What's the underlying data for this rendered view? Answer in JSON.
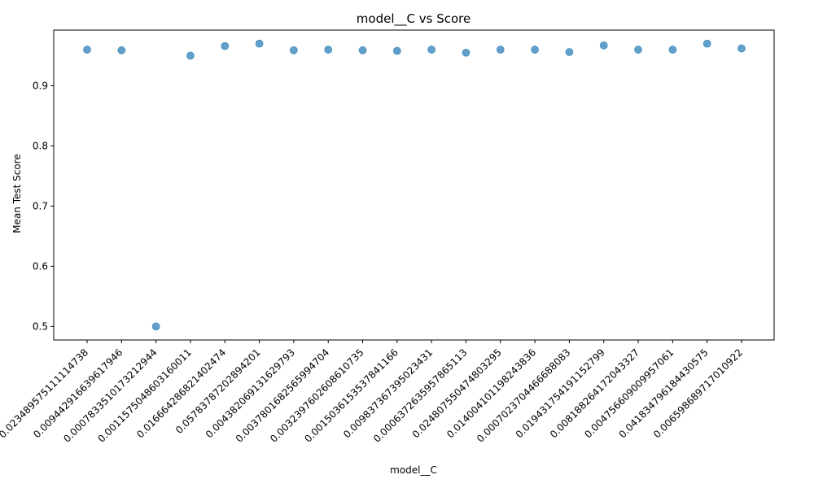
{
  "chart_data": {
    "type": "scatter",
    "title": "model__C vs Score",
    "xlabel": "model__C",
    "ylabel": "Mean Test Score",
    "categories": [
      "0.023489575111114738",
      "0.009442916639617946",
      "0.0007833510173212944",
      "0.0011575048603160011",
      "0.016664286821402474",
      "0.05783787202894201",
      "0.004382069131629793",
      "0.0037801682565994704",
      "0.0032397602608610735",
      "0.0015036153537841166",
      "0.009837367395023431",
      "0.0006372635957865113",
      "0.024807550474803295",
      "0.014004101198243836",
      "0.0007023704466688083",
      "0.019431754191152799",
      "0.008188264172043327",
      "0.004756609009957061",
      "0.041834796184430575",
      "0.006598689717010922"
    ],
    "values": [
      0.96,
      0.959,
      0.5,
      0.95,
      0.966,
      0.97,
      0.959,
      0.96,
      0.959,
      0.958,
      0.96,
      0.955,
      0.96,
      0.96,
      0.956,
      0.967,
      0.96,
      0.96,
      0.97,
      0.962
    ],
    "ylim": [
      0.4775,
      0.9925
    ],
    "yticks": [
      0.5,
      0.6,
      0.7,
      0.8,
      0.9
    ],
    "ytick_labels": [
      "0.5",
      "0.6",
      "0.7",
      "0.8",
      "0.9"
    ],
    "grid": false,
    "marker_color": "#1f77b4"
  }
}
